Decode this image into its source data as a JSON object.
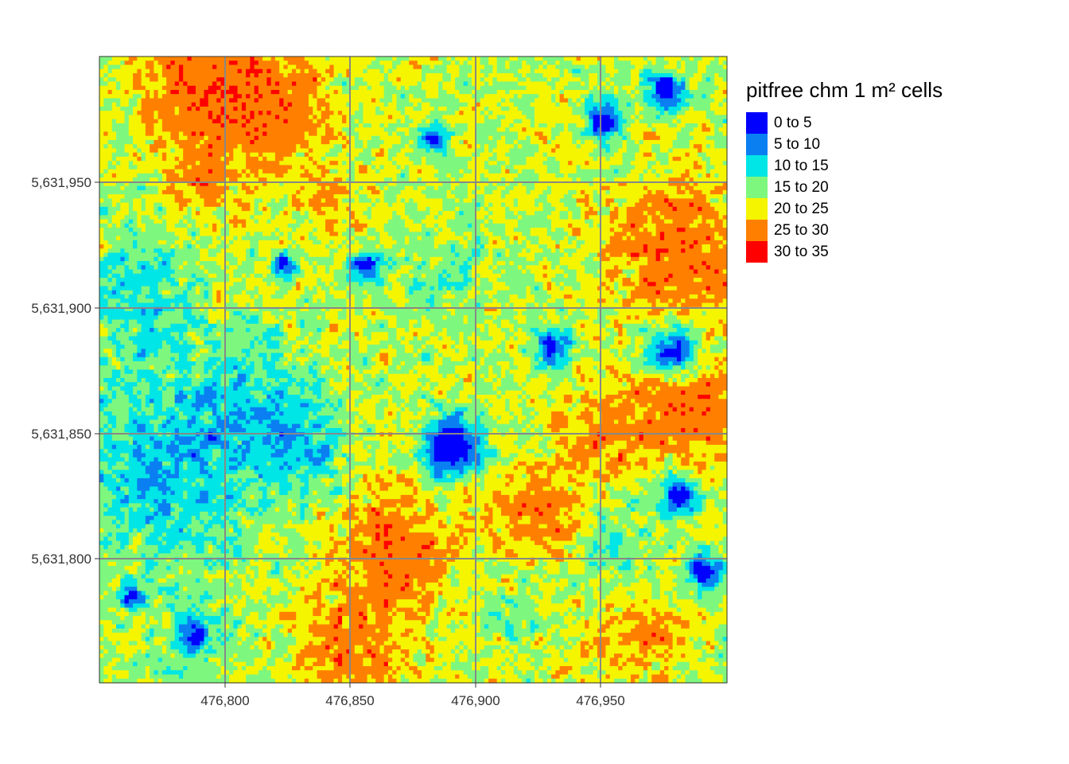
{
  "map": {
    "legend_title": "pitfree chm 1 m² cells",
    "classes": [
      {
        "label": "0 to 5",
        "color": "#0000FF"
      },
      {
        "label": "5 to 10",
        "color": "#0A7FF2"
      },
      {
        "label": "10 to 15",
        "color": "#00E5E5"
      },
      {
        "label": "15 to 20",
        "color": "#7EF77E"
      },
      {
        "label": "20 to 25",
        "color": "#F5F500"
      },
      {
        "label": "25 to 30",
        "color": "#FF8000"
      },
      {
        "label": "30 to 35",
        "color": "#FF0000"
      }
    ],
    "x_ticks": [
      "476,800",
      "476,850",
      "476,900",
      "476,950"
    ],
    "y_ticks": [
      "5,631,950",
      "5,631,900",
      "5,631,850",
      "5,631,800"
    ],
    "grid_color": "#888888"
  }
}
